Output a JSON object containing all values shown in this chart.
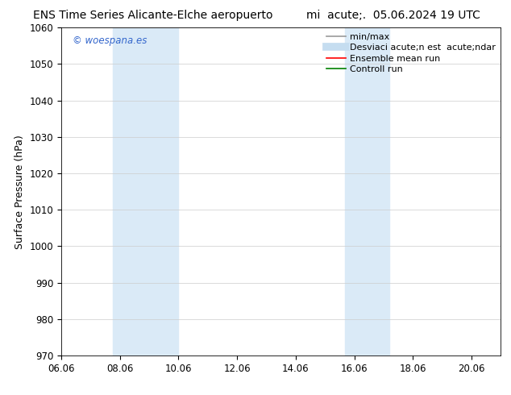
{
  "title_left": "ENS Time Series Alicante-Elche aeropuerto",
  "title_right": "mi  acute;.  05.06.2024 19 UTC",
  "ylabel": "Surface Pressure (hPa)",
  "ylim": [
    970,
    1060
  ],
  "yticks": [
    970,
    980,
    990,
    1000,
    1010,
    1020,
    1030,
    1040,
    1050,
    1060
  ],
  "xlim_start": 6.06,
  "xlim_end": 21.06,
  "xticks": [
    6.06,
    8.06,
    10.06,
    12.06,
    14.06,
    16.06,
    18.06,
    20.06
  ],
  "xtick_labels": [
    "06.06",
    "08.06",
    "10.06",
    "12.06",
    "14.06",
    "16.06",
    "18.06",
    "20.06"
  ],
  "shaded_bands": [
    {
      "x_start": 7.81,
      "x_end": 10.06,
      "color": "#daeaf7"
    },
    {
      "x_start": 15.75,
      "x_end": 17.25,
      "color": "#daeaf7"
    }
  ],
  "watermark_text": "© woespana.es",
  "watermark_color": "#3366cc",
  "legend_entries": [
    {
      "label": "min/max",
      "color": "#999999",
      "linewidth": 1.2,
      "style": "line"
    },
    {
      "label": "Desviaci acute;n est  acute;ndar",
      "color": "#c5ddf0",
      "linewidth": 7,
      "style": "line"
    },
    {
      "label": "Ensemble mean run",
      "color": "red",
      "linewidth": 1.2,
      "style": "line"
    },
    {
      "label": "Controll run",
      "color": "green",
      "linewidth": 1.2,
      "style": "line"
    }
  ],
  "bg_color": "#ffffff",
  "plot_bg_color": "#ffffff",
  "grid_color": "#cccccc",
  "title_fontsize": 10,
  "axis_label_fontsize": 9,
  "tick_fontsize": 8.5,
  "legend_fontsize": 8,
  "watermark_fontsize": 8.5
}
